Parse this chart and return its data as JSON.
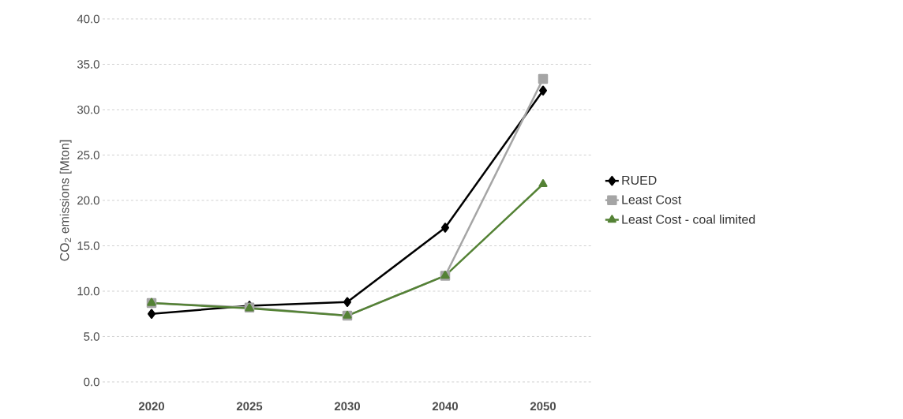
{
  "chart_data": {
    "type": "line",
    "ylabel": "CO$_{2}$ emissions [Mton]",
    "categories": [
      "2020",
      "2025",
      "2030",
      "2040",
      "2050"
    ],
    "series": [
      {
        "name": "RUED",
        "color": "#000000",
        "marker": "diamond",
        "values": [
          7.5,
          8.4,
          8.8,
          17.0,
          32.1
        ]
      },
      {
        "name": "Least Cost",
        "color": "#a5a5a5",
        "marker": "square",
        "values": [
          8.7,
          8.2,
          7.3,
          11.7,
          33.4
        ]
      },
      {
        "name": "Least Cost - coal limited",
        "color": "#548235",
        "marker": "triangle",
        "values": [
          8.7,
          8.1,
          7.3,
          11.7,
          21.8
        ]
      }
    ],
    "ylim": [
      0,
      40
    ],
    "yticks": [
      {
        "value": 0,
        "label": "0.0"
      },
      {
        "value": 5,
        "label": "5.0"
      },
      {
        "value": 10,
        "label": "10.0"
      },
      {
        "value": 15,
        "label": "15.0"
      },
      {
        "value": 20,
        "label": "20.0"
      },
      {
        "value": 25,
        "label": "25.0"
      },
      {
        "value": 30,
        "label": "30.0"
      },
      {
        "value": 35,
        "label": "35.0"
      },
      {
        "value": 40,
        "label": "40.0"
      }
    ],
    "grid": "y",
    "legend": "right",
    "line_style": "solid"
  }
}
